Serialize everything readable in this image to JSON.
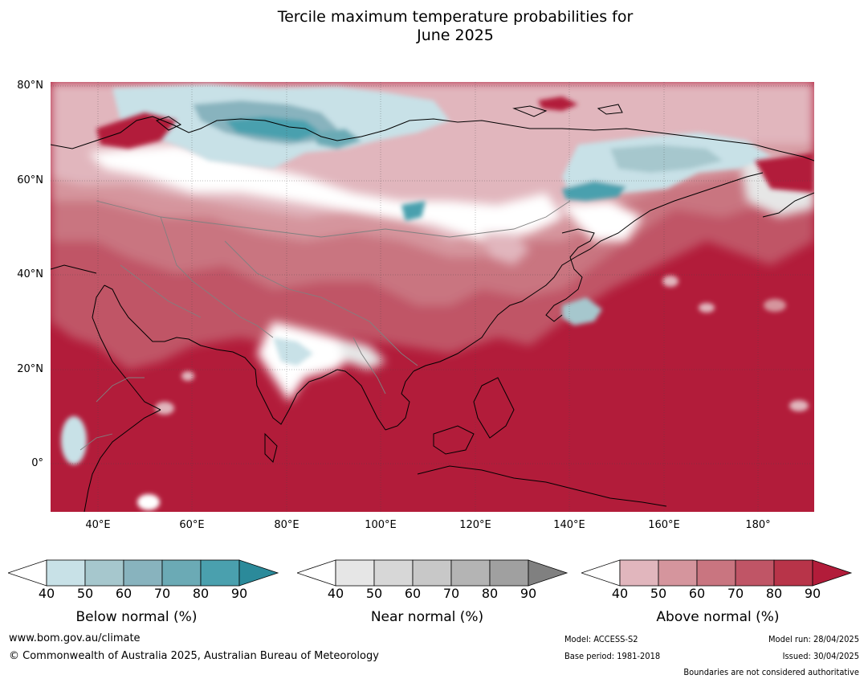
{
  "title": {
    "line1": "Tercile maximum temperature probabilities for",
    "line2": "June 2025"
  },
  "map": {
    "lat_labels": [
      "80°N",
      "60°N",
      "40°N",
      "20°N",
      "0°"
    ],
    "lon_labels": [
      "40°E",
      "60°E",
      "80°E",
      "100°E",
      "120°E",
      "140°E",
      "160°E",
      "180°"
    ]
  },
  "colorbars": [
    {
      "label": "Below normal (%)",
      "ticks": [
        "40",
        "50",
        "60",
        "70",
        "80",
        "90"
      ],
      "colors": [
        "#ffffff",
        "#c8e1e7",
        "#a6c7cd",
        "#88b3be",
        "#6baab5",
        "#4aa0ae",
        "#2b8a9a"
      ]
    },
    {
      "label": "Near normal (%)",
      "ticks": [
        "40",
        "50",
        "60",
        "70",
        "80",
        "90"
      ],
      "colors": [
        "#ffffff",
        "#e6e6e6",
        "#d7d7d7",
        "#c8c8c8",
        "#b4b4b4",
        "#a0a0a0",
        "#808080"
      ]
    },
    {
      "label": "Above normal (%)",
      "ticks": [
        "40",
        "50",
        "60",
        "70",
        "80",
        "90"
      ],
      "colors": [
        "#ffffff",
        "#e1b6bd",
        "#d5959d",
        "#c97580",
        "#c05566",
        "#b83449",
        "#b21c3a"
      ]
    }
  ],
  "footer": {
    "website": "www.bom.gov.au/climate",
    "copyright": "© Commonwealth of Australia 2025, Australian Bureau of Meteorology",
    "model": "Model: ACCESS-S2",
    "base_period": "Base period: 1981-2018",
    "model_run": "Model run: 28/04/2025",
    "issued": "Issued: 30/04/2025",
    "disclaimer": "Boundaries are not considered authoritative"
  }
}
